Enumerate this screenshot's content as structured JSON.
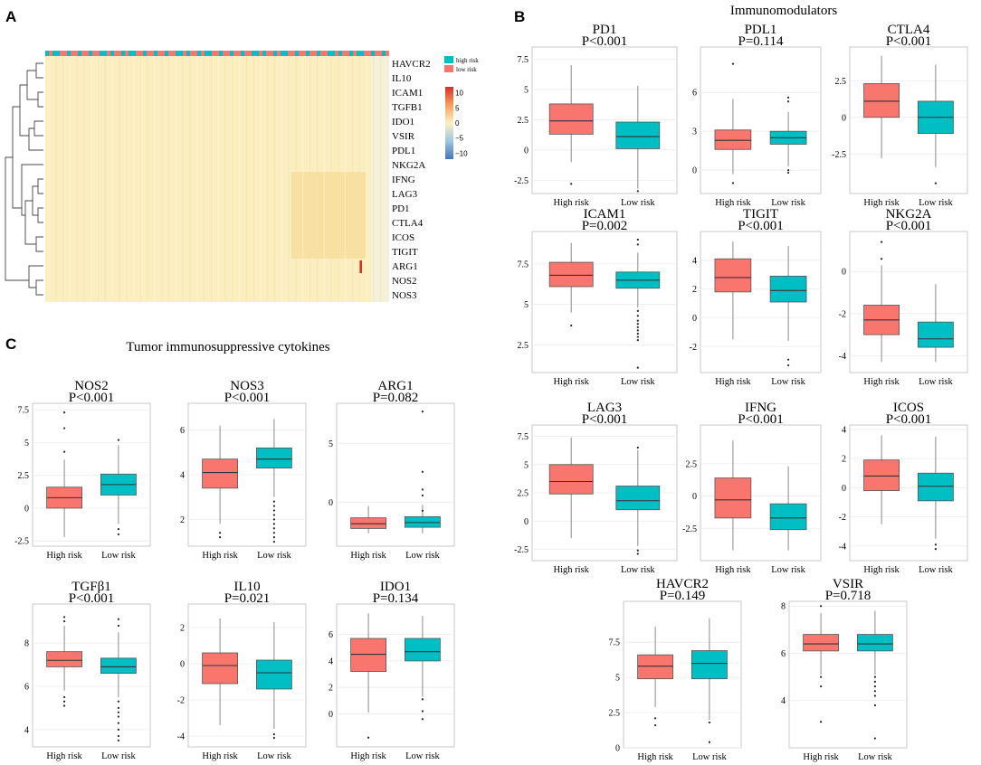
{
  "panels": {
    "A": {
      "letter": "A"
    },
    "B": {
      "letter": "B",
      "title": "Immunomodulators"
    },
    "C": {
      "letter": "C",
      "title": "Tumor immunosuppressive cytokines"
    }
  },
  "colors": {
    "high": "#f8766d",
    "low": "#00bfc4",
    "heat_low": "#4575b4",
    "heat_mid": "#fbf1c3",
    "heat_high": "#d73027"
  },
  "heatmap": {
    "legend": [
      "high risk",
      "low risk"
    ],
    "color_scale": {
      "ticks": [
        "10",
        "5",
        "0",
        "−5",
        "−10"
      ],
      "values": [
        10,
        5,
        0,
        -5,
        -10
      ]
    },
    "rows": [
      "HAVCR2",
      "IL10",
      "ICAM1",
      "TGFB1",
      "IDO1",
      "VSIR",
      "PDL1",
      "NKG2A",
      "IFNG",
      "LAG3",
      "PD1",
      "CTLA4",
      "ICOS",
      "TIGIT",
      "ARG1",
      "NOS2",
      "NOS3"
    ]
  },
  "chart_data": [
    {
      "type": "box",
      "panel": "B",
      "gene": "PD1",
      "p_label": "P<0.001",
      "categories": [
        "High risk",
        "Low risk"
      ],
      "ylim": [
        -3.6,
        8.5
      ],
      "yticks": [
        "7.5",
        "5",
        "2.5",
        "0",
        "-2.5"
      ],
      "ytick_values": [
        7.5,
        5,
        2.5,
        0,
        -2.5
      ],
      "boxes": [
        {
          "min": -1,
          "q1": 1.3,
          "median": 2.4,
          "q3": 3.8,
          "max": 7,
          "outliers": [
            -2.8
          ]
        },
        {
          "min": -3.2,
          "q1": 0.1,
          "median": 1.1,
          "q3": 2.3,
          "max": 5.3,
          "outliers": [
            -3.4
          ]
        }
      ]
    },
    {
      "type": "box",
      "panel": "B",
      "gene": "PDL1",
      "p_label": "P=0.114",
      "categories": [
        "High risk",
        "Low risk"
      ],
      "ylim": [
        -1.8,
        9.5
      ],
      "yticks": [
        "6",
        "3",
        "0"
      ],
      "ytick_values": [
        6,
        3,
        0
      ],
      "boxes": [
        {
          "min": -0.3,
          "q1": 1.6,
          "median": 2.3,
          "q3": 3.1,
          "max": 5.5,
          "outliers": [
            8.2,
            -1
          ]
        },
        {
          "min": 0.3,
          "q1": 2,
          "median": 2.5,
          "q3": 3,
          "max": 4.5,
          "outliers": [
            5.3,
            5.6,
            0,
            -0.2
          ]
        }
      ]
    },
    {
      "type": "box",
      "panel": "B",
      "gene": "CTLA4",
      "p_label": "P<0.001",
      "categories": [
        "High risk",
        "Low risk"
      ],
      "ylim": [
        -5.2,
        4.8
      ],
      "yticks": [
        "2.5",
        "0",
        "-2.5"
      ],
      "ytick_values": [
        2.5,
        0,
        -2.5
      ],
      "boxes": [
        {
          "min": -2.8,
          "q1": 0,
          "median": 1.1,
          "q3": 2.3,
          "max": 4.2,
          "outliers": []
        },
        {
          "min": -3.4,
          "q1": -1.1,
          "median": 0,
          "q3": 1.1,
          "max": 3.6,
          "outliers": [
            -4.5
          ]
        }
      ]
    },
    {
      "type": "box",
      "panel": "B",
      "gene": "ICAM1",
      "p_label": "P=0.002",
      "categories": [
        "High risk",
        "Low risk"
      ],
      "ylim": [
        0.8,
        9.5
      ],
      "yticks": [
        "7.5",
        "5",
        "2.5"
      ],
      "ytick_values": [
        7.5,
        5,
        2.5
      ],
      "boxes": [
        {
          "min": 4.5,
          "q1": 6.1,
          "median": 6.8,
          "q3": 7.6,
          "max": 8.8,
          "outliers": [
            3.7
          ]
        },
        {
          "min": 4.8,
          "q1": 6,
          "median": 6.5,
          "q3": 7,
          "max": 8.2,
          "outliers": [
            9,
            8.7,
            4.6,
            4.3,
            4,
            3.8,
            3.6,
            3.4,
            3.2,
            3,
            2.8,
            1.1
          ]
        }
      ]
    },
    {
      "type": "box",
      "panel": "B",
      "gene": "TIGIT",
      "p_label": "P<0.001",
      "categories": [
        "High risk",
        "Low risk"
      ],
      "ylim": [
        -3.8,
        6
      ],
      "yticks": [
        "4",
        "2",
        "0",
        "-2"
      ],
      "ytick_values": [
        4,
        2,
        0,
        -2
      ],
      "boxes": [
        {
          "min": -1.5,
          "q1": 1.8,
          "median": 2.8,
          "q3": 4.1,
          "max": 5.3,
          "outliers": []
        },
        {
          "min": -1.6,
          "q1": 1.1,
          "median": 1.9,
          "q3": 2.9,
          "max": 5,
          "outliers": [
            -2.9,
            -3.3
          ]
        }
      ]
    },
    {
      "type": "box",
      "panel": "B",
      "gene": "NKG2A",
      "p_label": "P<0.001",
      "categories": [
        "High risk",
        "Low risk"
      ],
      "ylim": [
        -4.8,
        1.9
      ],
      "yticks": [
        "0",
        "-2",
        "-4"
      ],
      "ytick_values": [
        0,
        -2,
        -4
      ],
      "boxes": [
        {
          "min": -4.3,
          "q1": -3,
          "median": -2.3,
          "q3": -1.6,
          "max": 0.3,
          "outliers": [
            1.4,
            0.6
          ]
        },
        {
          "min": -4.3,
          "q1": -3.6,
          "median": -3.2,
          "q3": -2.4,
          "max": -0.6,
          "outliers": []
        }
      ]
    },
    {
      "type": "box",
      "panel": "B",
      "gene": "LAG3",
      "p_label": "P<0.001",
      "categories": [
        "High risk",
        "Low risk"
      ],
      "ylim": [
        -3.5,
        8.5
      ],
      "yticks": [
        "7.5",
        "5",
        "2.5",
        "0",
        "-2.5"
      ],
      "ytick_values": [
        7.5,
        5,
        2.5,
        0,
        -2.5
      ],
      "boxes": [
        {
          "min": -1.5,
          "q1": 2.4,
          "median": 3.5,
          "q3": 5,
          "max": 7.4,
          "outliers": []
        },
        {
          "min": -2.2,
          "q1": 1,
          "median": 1.8,
          "q3": 3.1,
          "max": 6.3,
          "outliers": [
            6.5,
            -2.6,
            -2.9
          ]
        }
      ]
    },
    {
      "type": "box",
      "panel": "B",
      "gene": "IFNG",
      "p_label": "P<0.001",
      "categories": [
        "High risk",
        "Low risk"
      ],
      "ylim": [
        -5,
        5.5
      ],
      "yticks": [
        "2.5",
        "0",
        "-2.5"
      ],
      "ytick_values": [
        2.5,
        0,
        -2.5
      ],
      "boxes": [
        {
          "min": -4.2,
          "q1": -1.7,
          "median": -0.3,
          "q3": 1.4,
          "max": 4.3,
          "outliers": []
        },
        {
          "min": -4.2,
          "q1": -2.6,
          "median": -1.7,
          "q3": -0.6,
          "max": 2.3,
          "outliers": []
        }
      ]
    },
    {
      "type": "box",
      "panel": "B",
      "gene": "ICOS",
      "p_label": "P<0.001",
      "categories": [
        "High risk",
        "Low risk"
      ],
      "ylim": [
        -5,
        4.3
      ],
      "yticks": [
        "4",
        "2",
        "0",
        "-2",
        "-4"
      ],
      "ytick_values": [
        4,
        2,
        0,
        -2,
        -4
      ],
      "boxes": [
        {
          "min": -2.5,
          "q1": -0.2,
          "median": 0.8,
          "q3": 1.9,
          "max": 3.6,
          "outliers": []
        },
        {
          "min": -3.5,
          "q1": -0.9,
          "median": 0.1,
          "q3": 1,
          "max": 3.5,
          "outliers": [
            -3.9,
            -4.2
          ]
        }
      ]
    },
    {
      "type": "box",
      "panel": "B",
      "gene": "HAVCR2",
      "p_label": "P=0.149",
      "categories": [
        "High risk",
        "Low risk"
      ],
      "ylim": [
        0,
        10.4
      ],
      "yticks": [
        "7.5",
        "5",
        "2.5",
        "0"
      ],
      "ytick_values": [
        7.5,
        5,
        2.5,
        0
      ],
      "boxes": [
        {
          "min": 2.9,
          "q1": 4.9,
          "median": 5.8,
          "q3": 6.6,
          "max": 8.6,
          "outliers": [
            2.1,
            1.6
          ]
        },
        {
          "min": 2,
          "q1": 4.9,
          "median": 6,
          "q3": 6.9,
          "max": 9.2,
          "outliers": [
            1.8,
            0.4
          ]
        }
      ]
    },
    {
      "type": "box",
      "panel": "B",
      "gene": "VSIR",
      "p_label": "P=0.718",
      "categories": [
        "High risk",
        "Low risk"
      ],
      "ylim": [
        2,
        8.2
      ],
      "yticks": [
        "8",
        "6",
        "4"
      ],
      "ytick_values": [
        8,
        6,
        4
      ],
      "boxes": [
        {
          "min": 5.1,
          "q1": 6.1,
          "median": 6.4,
          "q3": 6.8,
          "max": 7.7,
          "outliers": [
            8,
            5,
            4.6,
            3.1
          ]
        },
        {
          "min": 5.1,
          "q1": 6.1,
          "median": 6.4,
          "q3": 6.8,
          "max": 7.8,
          "outliers": [
            5,
            4.8,
            4.6,
            4.4,
            4.2,
            3.8,
            2.4
          ]
        }
      ]
    },
    {
      "type": "box",
      "panel": "C",
      "gene": "NOS2",
      "p_label": "P<0.001",
      "categories": [
        "High risk",
        "Low risk"
      ],
      "ylim": [
        -2.9,
        8
      ],
      "yticks": [
        "7.5",
        "5",
        "2.5",
        "0",
        "-2.5"
      ],
      "ytick_values": [
        7.5,
        5,
        2.5,
        0,
        -2.5
      ],
      "boxes": [
        {
          "min": -2.2,
          "q1": 0,
          "median": 0.8,
          "q3": 1.6,
          "max": 3.7,
          "outliers": [
            7.3,
            6.1,
            4.3
          ]
        },
        {
          "min": -1.2,
          "q1": 1,
          "median": 1.8,
          "q3": 2.6,
          "max": 4.8,
          "outliers": [
            5.2,
            -1.6,
            -2
          ]
        }
      ]
    },
    {
      "type": "box",
      "panel": "C",
      "gene": "NOS3",
      "p_label": "P<0.001",
      "categories": [
        "High risk",
        "Low risk"
      ],
      "ylim": [
        0.8,
        7.2
      ],
      "yticks": [
        "6",
        "4",
        "2"
      ],
      "ytick_values": [
        6,
        4,
        2
      ],
      "boxes": [
        {
          "min": 1.8,
          "q1": 3.4,
          "median": 4.1,
          "q3": 4.7,
          "max": 6.2,
          "outliers": [
            1.4,
            1.2
          ]
        },
        {
          "min": 3,
          "q1": 4.3,
          "median": 4.7,
          "q3": 5.2,
          "max": 6.5,
          "outliers": [
            2.8,
            2.6,
            2.4,
            2.2,
            2,
            1.8,
            1.6,
            1.4,
            1.2,
            1
          ]
        }
      ]
    },
    {
      "type": "box",
      "panel": "C",
      "gene": "ARG1",
      "p_label": "P=0.082",
      "categories": [
        "High risk",
        "Low risk"
      ],
      "ylim": [
        -3.7,
        8.4
      ],
      "yticks": [
        "5",
        "0"
      ],
      "ytick_values": [
        5,
        0
      ],
      "boxes": [
        {
          "min": -2.6,
          "q1": -2.2,
          "median": -1.8,
          "q3": -1.3,
          "max": -0.3,
          "outliers": []
        },
        {
          "min": -2.6,
          "q1": -2.1,
          "median": -1.7,
          "q3": -1.2,
          "max": -0.2,
          "outliers": [
            7.7,
            2.6,
            1.1,
            0.6,
            -0.7
          ]
        }
      ]
    },
    {
      "type": "box",
      "panel": "C",
      "gene": "TGFβ1",
      "p_label": "P<0.001",
      "categories": [
        "High risk",
        "Low risk"
      ],
      "ylim": [
        3.2,
        9.8
      ],
      "yticks": [
        "8",
        "6",
        "4"
      ],
      "ytick_values": [
        8,
        6,
        4
      ],
      "boxes": [
        {
          "min": 5.8,
          "q1": 6.9,
          "median": 7.2,
          "q3": 7.6,
          "max": 8.8,
          "outliers": [
            9.2,
            9,
            5.5,
            5.3,
            5.1
          ]
        },
        {
          "min": 5.5,
          "q1": 6.6,
          "median": 6.9,
          "q3": 7.3,
          "max": 8.5,
          "outliers": [
            9.1,
            8.8,
            5.3,
            5,
            4.8,
            4.6,
            4.3,
            4,
            3.7,
            3.5
          ]
        }
      ]
    },
    {
      "type": "box",
      "panel": "C",
      "gene": "IL10",
      "p_label": "P=0.021",
      "categories": [
        "High risk",
        "Low risk"
      ],
      "ylim": [
        -4.6,
        3.3
      ],
      "yticks": [
        "2",
        "0",
        "-2",
        "-4"
      ],
      "ytick_values": [
        2,
        0,
        -2,
        -4
      ],
      "boxes": [
        {
          "min": -3.4,
          "q1": -1.1,
          "median": -0.1,
          "q3": 0.6,
          "max": 2.5,
          "outliers": []
        },
        {
          "min": -3.6,
          "q1": -1.4,
          "median": -0.5,
          "q3": 0.2,
          "max": 2.3,
          "outliers": [
            -3.9,
            -4.1
          ]
        }
      ]
    },
    {
      "type": "box",
      "panel": "C",
      "gene": "IDO1",
      "p_label": "P=0.134",
      "categories": [
        "High risk",
        "Low risk"
      ],
      "ylim": [
        -2.5,
        8.3
      ],
      "yticks": [
        "6",
        "4",
        "2",
        "0"
      ],
      "ytick_values": [
        6,
        4,
        2,
        0
      ],
      "boxes": [
        {
          "min": 0.1,
          "q1": 3.2,
          "median": 4.5,
          "q3": 5.7,
          "max": 7.6,
          "outliers": [
            -1.8
          ]
        },
        {
          "min": 1.3,
          "q1": 4,
          "median": 4.7,
          "q3": 5.7,
          "max": 7.4,
          "outliers": [
            1.1,
            0.2,
            -0.4
          ]
        }
      ]
    }
  ]
}
